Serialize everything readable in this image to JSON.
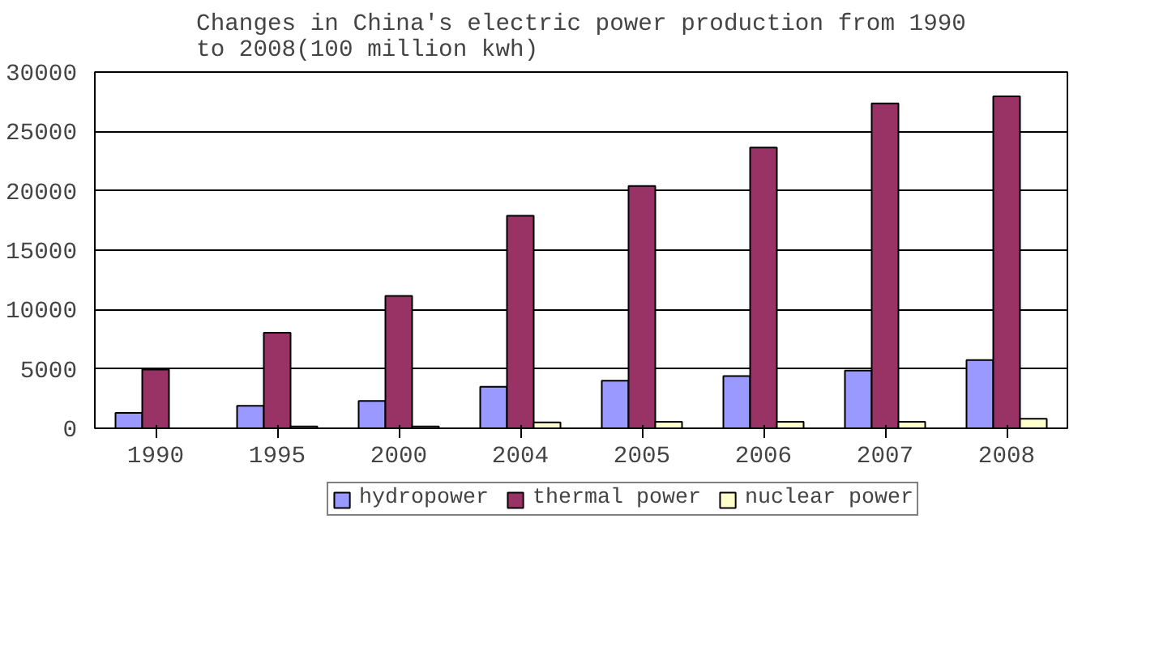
{
  "chart_data": {
    "type": "bar",
    "title": "Changes in China's electric power production from 1990\nto 2008(100 million kwh)",
    "categories": [
      "1990",
      "1995",
      "2000",
      "2004",
      "2005",
      "2006",
      "2007",
      "2008"
    ],
    "series": [
      {
        "name": "hydropower",
        "color": "#9999ff",
        "values": [
          1300,
          1900,
          2300,
          3500,
          4000,
          4400,
          4850,
          5750
        ]
      },
      {
        "name": "thermal power",
        "color": "#993366",
        "values": [
          4950,
          8050,
          11150,
          17900,
          20400,
          23650,
          27350,
          27950
        ]
      },
      {
        "name": "nuclear power",
        "color": "#ffffcc",
        "values": [
          null,
          150,
          150,
          500,
          550,
          550,
          550,
          800
        ]
      }
    ],
    "ylim": [
      0,
      30000
    ],
    "yticks": [
      0,
      5000,
      10000,
      15000,
      20000,
      25000,
      30000
    ],
    "grid": "y",
    "legend": "bottom"
  }
}
